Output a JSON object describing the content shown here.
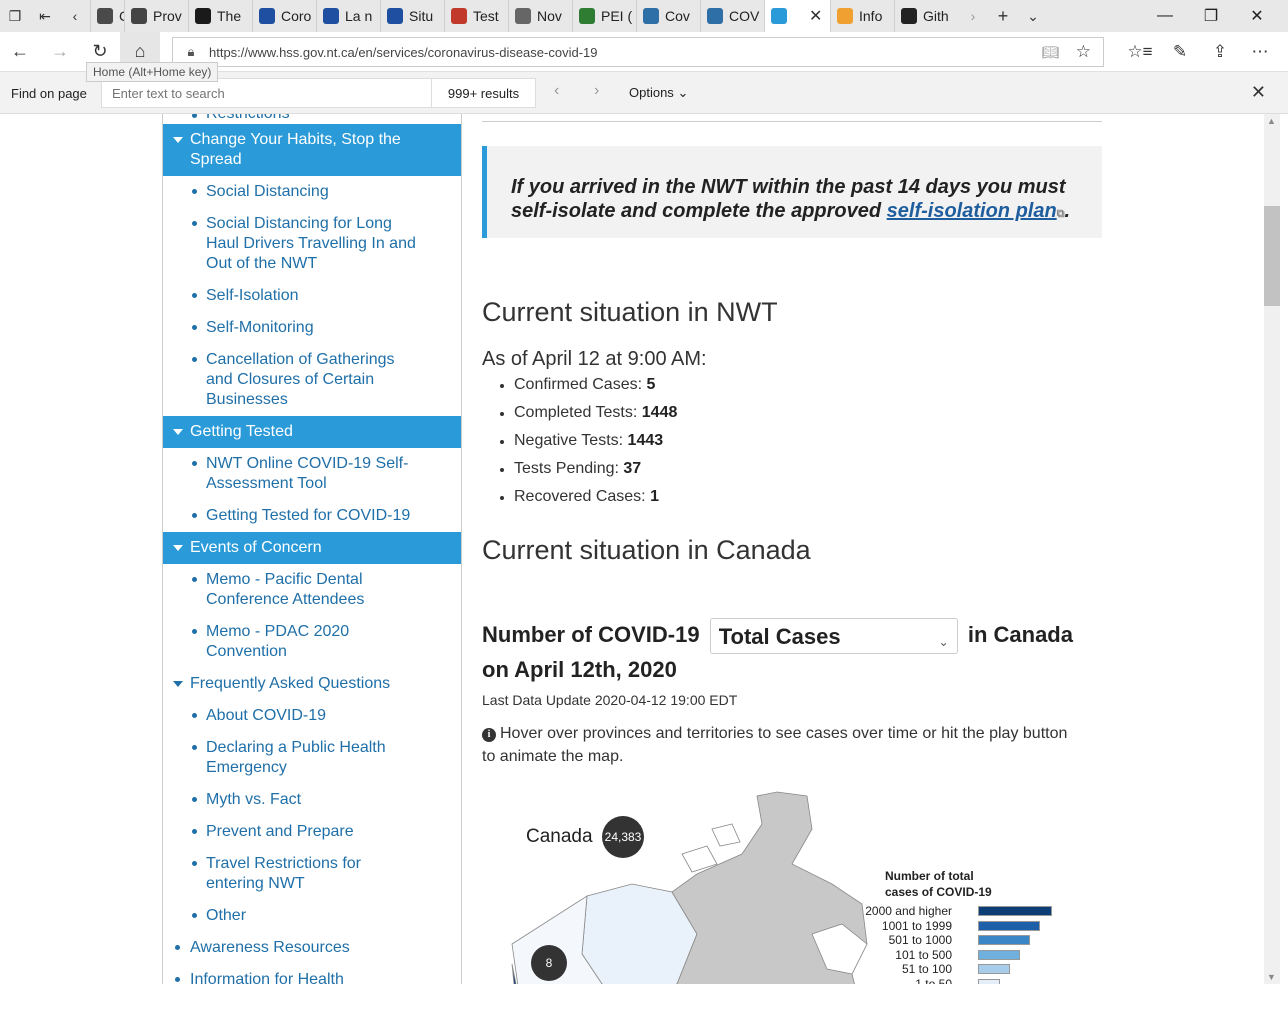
{
  "tabs": [
    {
      "label": "Case",
      "color": "#4a4a4a"
    },
    {
      "label": "Prov",
      "color": "#444444"
    },
    {
      "label": "The",
      "color": "#1a1a1a"
    },
    {
      "label": "Coro",
      "color": "#1f4fa0"
    },
    {
      "label": "La n",
      "color": "#1f4fa0"
    },
    {
      "label": "Situ",
      "color": "#1f4fa0"
    },
    {
      "label": "Test",
      "color": "#c0392b"
    },
    {
      "label": "Nov",
      "color": "#666666"
    },
    {
      "label": "PEI (",
      "color": "#2e7d32"
    },
    {
      "label": "Cov",
      "color": "#2f6fa8"
    },
    {
      "label": "COV",
      "color": "#2f6fa8"
    },
    {
      "label": "",
      "color": "#2a9ad8",
      "active": true
    },
    {
      "label": "Info",
      "color": "#f0a030"
    },
    {
      "label": "Gith",
      "color": "#222222"
    }
  ],
  "address": {
    "url": "https://www.hss.gov.nt.ca/en/services/coronavirus-disease-covid-19",
    "home_tooltip": "Home (Alt+Home key)"
  },
  "find": {
    "label": "Find on page",
    "placeholder": "Enter text to search",
    "count": "999+ results",
    "options": "Options"
  },
  "sidebar": {
    "cut_top": "Restrictions",
    "section1": "Change Your Habits, Stop the Spread",
    "s1_items": [
      "Social Distancing",
      "Social Distancing for Long Haul Drivers Travelling In and Out of the NWT",
      "Self-Isolation",
      "Self-Monitoring",
      "Cancellation of Gatherings and Closures of Certain Businesses"
    ],
    "section2": "Getting Tested",
    "s2_items": [
      "NWT Online COVID-19 Self-Assessment Tool",
      "Getting Tested for COVID-19"
    ],
    "section3": "Events of Concern",
    "s3_items": [
      "Memo - Pacific Dental Conference Attendees",
      "Memo - PDAC 2020 Convention"
    ],
    "faq": "Frequently Asked Questions",
    "faq_items": [
      "About COVID-19",
      "Declaring a Public Health Emergency",
      "Myth vs. Fact",
      "Prevent and Prepare",
      "Travel Restrictions for entering NWT",
      "Other"
    ],
    "awareness": "Awareness Resources",
    "cut_bottom": "Information for Health"
  },
  "main": {
    "callout_text": "If you arrived in the NWT within the past 14 days you must self-isolate and complete the approved ",
    "callout_link": "self-isolation plan",
    "callout_end": ".",
    "nwt_heading": "Current situation in NWT",
    "as_of": "As of April 12 at 9:00 AM:",
    "stats": [
      {
        "label": "Confirmed Cases: ",
        "value": "5"
      },
      {
        "label": "Completed Tests: ",
        "value": "1448"
      },
      {
        "label": "Negative Tests: ",
        "value": "1443"
      },
      {
        "label": "Tests Pending: ",
        "value": "37"
      },
      {
        "label": "Recovered Cases: ",
        "value": "1"
      }
    ],
    "canada_heading": "Current situation in Canada",
    "num_title_pre": "Number of COVID-19",
    "select_value": "Total Cases",
    "num_title_post": "in Canada",
    "num_title_date": "on April 12th, 2020",
    "last_update": "Last Data Update 2020-04-12 19:00 EDT",
    "hover_text": "Hover over provinces and territories to see cases over time or hit the play button to animate the map."
  },
  "map": {
    "canada_label": "Canada",
    "canada_total": "24,383",
    "bubble_bc_region": "8",
    "legend_title": "Number of total cases of COVID-19",
    "legend": [
      {
        "label": "2000 and higher",
        "color": "#0d3d75"
      },
      {
        "label": "1001 to 1999",
        "color": "#1d5fa8"
      },
      {
        "label": "501 to 1000",
        "color": "#3a86c6"
      },
      {
        "label": "101 to 500",
        "color": "#6fb0de"
      },
      {
        "label": "51 to 100",
        "color": "#a8cdea"
      },
      {
        "label": "1 to 50",
        "color": "#e3eef8"
      }
    ]
  }
}
